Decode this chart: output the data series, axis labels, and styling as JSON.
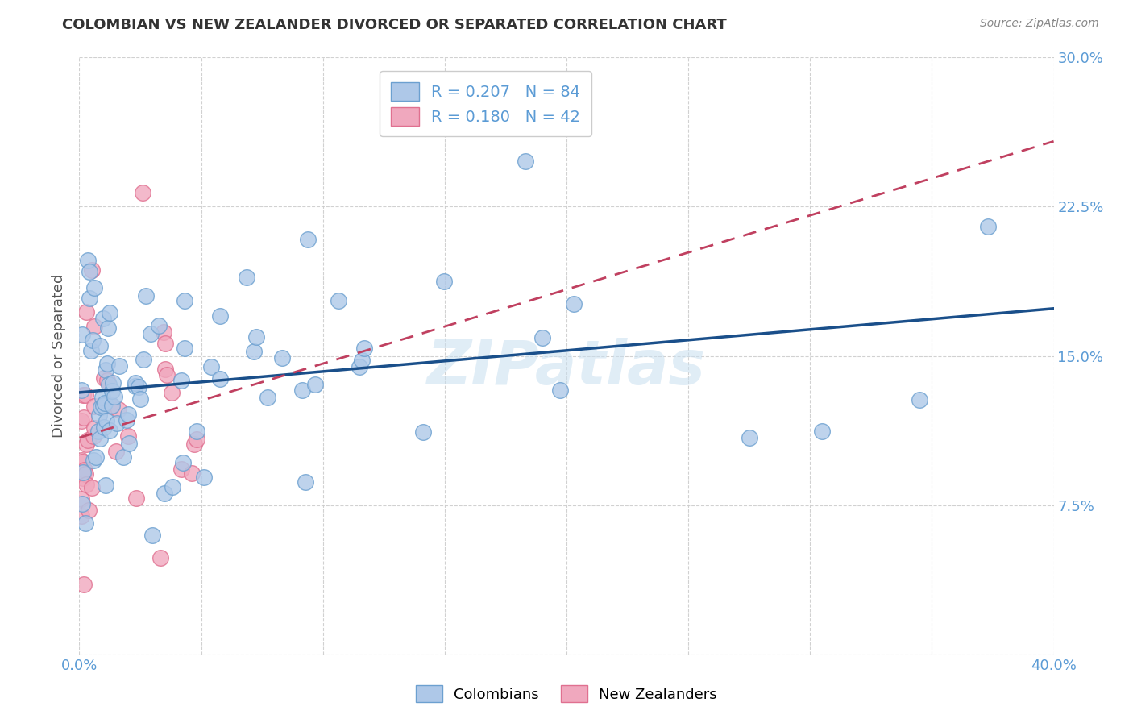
{
  "title": "COLOMBIAN VS NEW ZEALANDER DIVORCED OR SEPARATED CORRELATION CHART",
  "source": "Source: ZipAtlas.com",
  "ylabel": "Divorced or Separated",
  "xlim": [
    0.0,
    0.4
  ],
  "ylim": [
    0.0,
    0.3
  ],
  "xtick_positions": [
    0.0,
    0.05,
    0.1,
    0.15,
    0.2,
    0.25,
    0.3,
    0.35,
    0.4
  ],
  "xticklabels": [
    "0.0%",
    "",
    "",
    "",
    "",
    "",
    "",
    "",
    "40.0%"
  ],
  "ytick_positions": [
    0.0,
    0.075,
    0.15,
    0.225,
    0.3
  ],
  "yticklabels": [
    "",
    "7.5%",
    "15.0%",
    "22.5%",
    "30.0%"
  ],
  "grid_color": "#cccccc",
  "col_scatter_face": "#aec8e8",
  "col_scatter_edge": "#6ca0d0",
  "nz_scatter_face": "#f0a8be",
  "nz_scatter_edge": "#e07090",
  "col_line_color": "#1a4f8a",
  "nz_line_color": "#c04060",
  "axis_tick_color": "#5b9bd5",
  "ylabel_color": "#555555",
  "title_color": "#333333",
  "source_color": "#888888",
  "watermark_color": "#c8dff0",
  "col_R": 0.207,
  "col_N": 84,
  "nz_R": 0.18,
  "nz_N": 42
}
